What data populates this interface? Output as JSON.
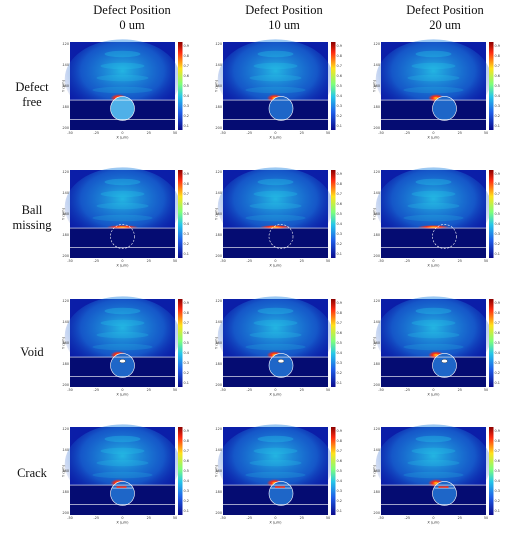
{
  "columns": [
    {
      "title": "Defect Position",
      "value": "0 um"
    },
    {
      "title": "Defect Position",
      "value": "10 um"
    },
    {
      "title": "Defect Position",
      "value": "20 um"
    }
  ],
  "rows": [
    {
      "label": "Defect\nfree",
      "kind": "free"
    },
    {
      "label": "Ball\nmissing",
      "kind": "missing"
    },
    {
      "label": "Void",
      "kind": "void"
    },
    {
      "label": "Crack",
      "kind": "crack"
    }
  ],
  "defect_offsets_um": [
    0,
    10,
    20
  ],
  "axes": {
    "xlabel": "X (μm)",
    "ylabel": "Y (μm)",
    "xticks": [
      "-50",
      "-25",
      "0",
      "25",
      "50"
    ],
    "yticks": [
      "-120",
      "-140",
      "-160",
      "-180",
      "-200"
    ]
  },
  "colorbar_ticks": [
    "0.9",
    "0.8",
    "0.7",
    "0.6",
    "0.5",
    "0.4",
    "0.3",
    "0.2",
    "0.1"
  ],
  "colors": {
    "background": "#0b1ea8",
    "deep": "#050c72",
    "mid": "#1f8fe8",
    "field": "#26c6e8",
    "hot": "#ff2a10",
    "yellow": "#ffe21a",
    "interface": "#ffffff"
  }
}
